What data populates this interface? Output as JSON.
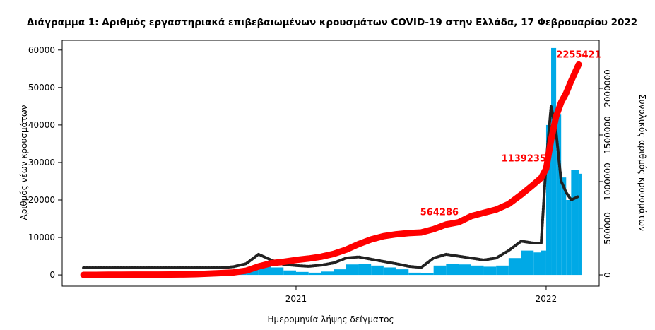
{
  "chart_data": {
    "type": "bar-line",
    "title": "Διάγραμμα 1: Αριθμός εργαστηριακά επιβεβαιωμένων κρουσμάτων COVID-19 στην Ελλάδα, 17 Φεβρουαρίου 2022",
    "xlabel": "Ημερομηνία λήψης δείγματος",
    "ylabel": "Αριθμός νέων κρουσμάτων",
    "y2label": "Συνολικός αριθμός κρουσμάτων",
    "x": [
      2020.15,
      2020.2,
      2020.25,
      2020.3,
      2020.35,
      2020.4,
      2020.45,
      2020.5,
      2020.55,
      2020.6,
      2020.65,
      2020.7,
      2020.75,
      2020.8,
      2020.85,
      2020.9,
      2020.95,
      2021.0,
      2021.05,
      2021.1,
      2021.15,
      2021.2,
      2021.25,
      2021.3,
      2021.35,
      2021.4,
      2021.45,
      2021.5,
      2021.55,
      2021.6,
      2021.65,
      2021.7,
      2021.75,
      2021.8,
      2021.85,
      2021.9,
      2021.95,
      2021.98,
      2022.0,
      2022.02,
      2022.04,
      2022.06,
      2022.08,
      2022.1,
      2022.13
    ],
    "series": [
      {
        "kind": "bar",
        "color": "#00a9e6",
        "axis": "y",
        "values": [
          20,
          60,
          80,
          30,
          10,
          10,
          20,
          30,
          150,
          200,
          300,
          350,
          500,
          1500,
          2800,
          2000,
          1200,
          800,
          600,
          900,
          1500,
          2800,
          3000,
          2500,
          2000,
          1500,
          600,
          500,
          2500,
          3000,
          2800,
          2500,
          2200,
          2500,
          4500,
          6500,
          6000,
          6500,
          40000,
          60543,
          42768,
          26000,
          20000,
          28000,
          27000
        ]
      },
      {
        "kind": "line",
        "color": "#222222",
        "axis": "y",
        "values": [
          1900,
          1900,
          1900,
          1900,
          1900,
          1900,
          1900,
          1900,
          1900,
          1900,
          1900,
          1900,
          2200,
          3000,
          5500,
          4000,
          2800,
          2500,
          2300,
          2600,
          3200,
          4500,
          4800,
          4200,
          3600,
          3000,
          2300,
          2000,
          4500,
          5500,
          5000,
          4500,
          4000,
          4500,
          6500,
          9000,
          8500,
          8500,
          30000,
          45000,
          38000,
          25000,
          22000,
          20000,
          21000
        ]
      },
      {
        "kind": "line",
        "color": "#ff0000",
        "axis": "y2",
        "values": [
          10,
          500,
          2000,
          2600,
          2900,
          3100,
          3400,
          3900,
          5000,
          8000,
          13000,
          19000,
          26000,
          45000,
          90000,
          125000,
          140000,
          160000,
          175000,
          195000,
          225000,
          270000,
          330000,
          380000,
          415000,
          435000,
          448000,
          455000,
          490000,
          540000,
          564286,
          630000,
          665000,
          700000,
          760000,
          860000,
          970000,
          1040000,
          1139235,
          1450000,
          1700000,
          1850000,
          1950000,
          2080000,
          2255421
        ]
      }
    ],
    "annotations": [
      {
        "x": 2021.65,
        "value": 564286
      },
      {
        "x": 2022.0,
        "value": 1139235
      },
      {
        "x": 2022.13,
        "value": 2255421
      }
    ],
    "annotation_color": "#ff0000",
    "xlim": [
      2020.065,
      2022.212
    ],
    "xticks": [
      2021,
      2022
    ],
    "ylim": [
      -3000,
      62600
    ],
    "yticks": [
      0,
      10000,
      20000,
      30000,
      40000,
      50000,
      60000
    ],
    "y2lim": [
      -121000,
      2515000
    ],
    "y2ticks": [
      0,
      500000,
      1000000,
      1500000,
      2000000
    ]
  }
}
